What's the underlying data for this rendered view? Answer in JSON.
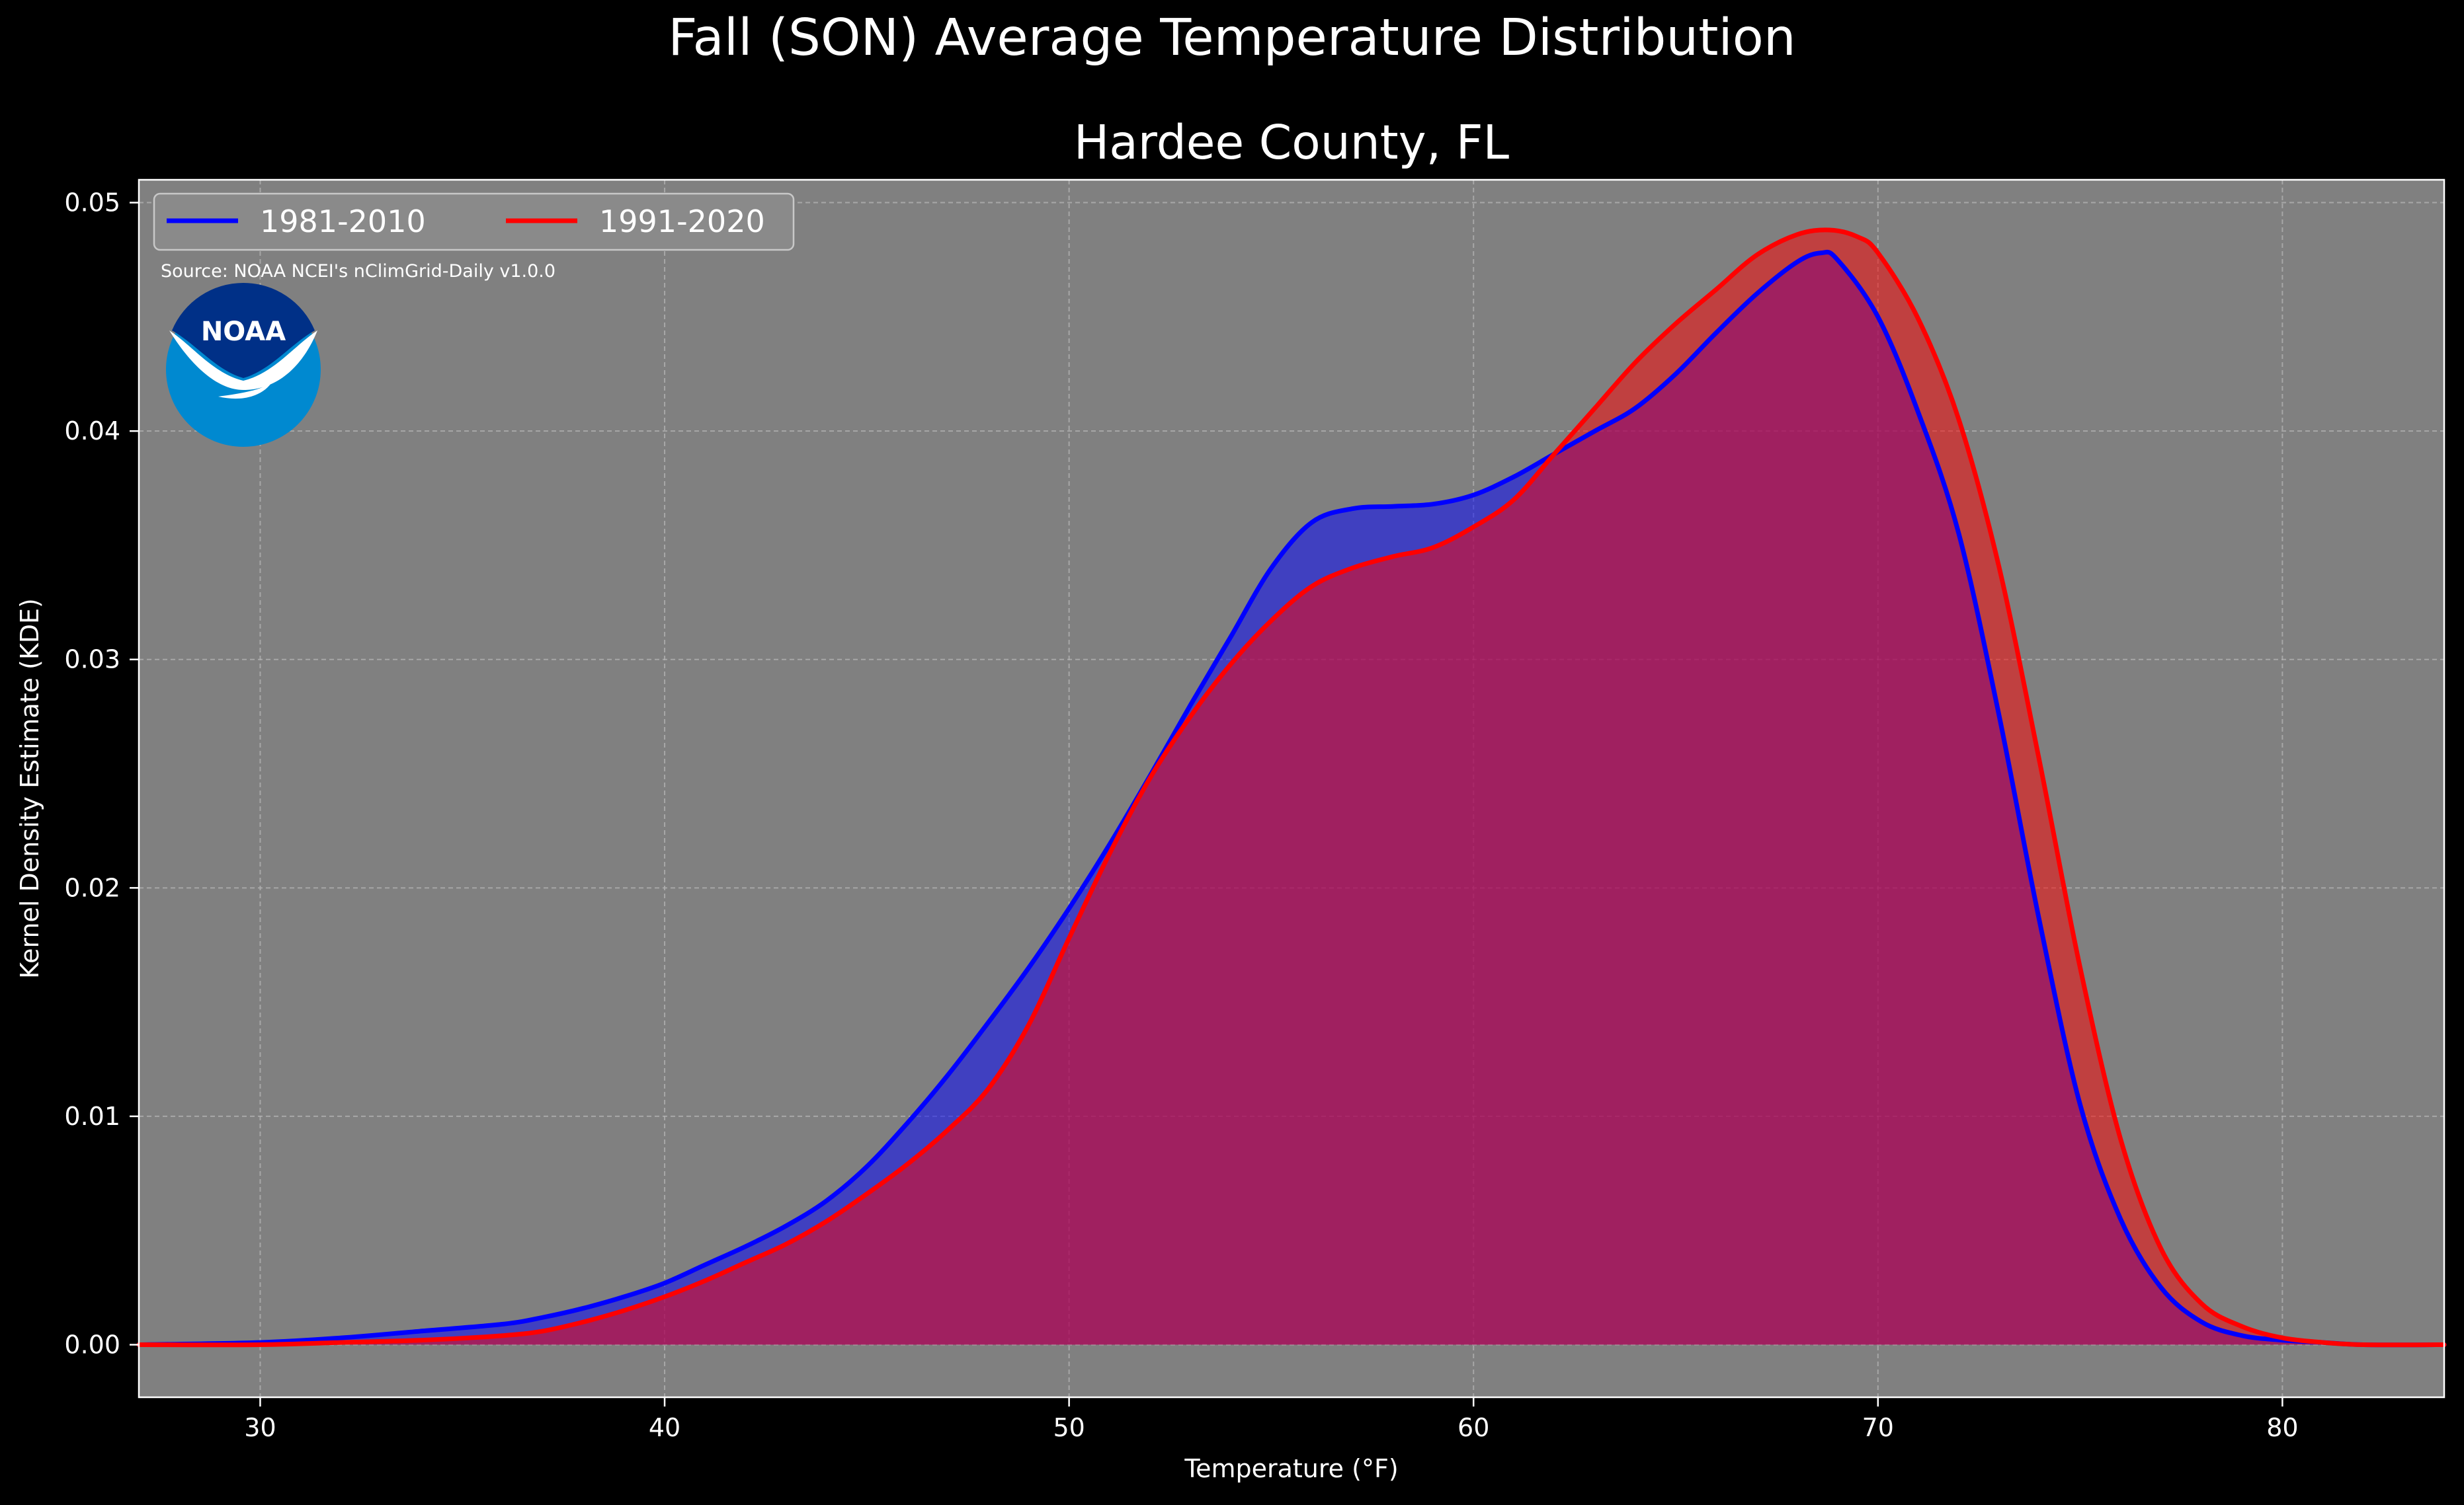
{
  "chart_data": {
    "type": "area",
    "title": "Fall (SON) Average Temperature Distribution",
    "subtitle": "Hardee County, FL",
    "xlabel": "Temperature (°F)",
    "ylabel": "Kernel Density Estimate (KDE)",
    "xlim": [
      27,
      84
    ],
    "ylim": [
      -0.0023,
      0.051
    ],
    "xticks": [
      30,
      40,
      50,
      60,
      70,
      80
    ],
    "yticks": [
      0.0,
      0.01,
      0.02,
      0.03,
      0.04,
      0.05
    ],
    "xtick_labels": [
      "30",
      "40",
      "50",
      "60",
      "70",
      "80"
    ],
    "ytick_labels": [
      "0.00",
      "0.01",
      "0.02",
      "0.03",
      "0.04",
      "0.05"
    ],
    "grid": true,
    "legend_position": "top-left",
    "source_note": "Source: NOAA NCEI's nClimGrid-Daily v1.0.0",
    "logo_text": "NOAA",
    "colors": {
      "background": "#000000",
      "plot_background": "#808080",
      "series_1981": "#0000ff",
      "series_1991": "#ff0000"
    },
    "series": [
      {
        "name": "1981-2010",
        "color": "#0000ff",
        "x": [
          27,
          30,
          32,
          34,
          36,
          37,
          38,
          39,
          40,
          41,
          42,
          43,
          44,
          45,
          46,
          47,
          48,
          49,
          50,
          51,
          52,
          53,
          54,
          55,
          56,
          57,
          58,
          59,
          60,
          61,
          62,
          63,
          64,
          65,
          66,
          67,
          68,
          68.6,
          69,
          70,
          71,
          72,
          73,
          74,
          75,
          76,
          77,
          78,
          79,
          80,
          81,
          82,
          84
        ],
        "y": [
          0.0,
          0.0001,
          0.0003,
          0.0006,
          0.0009,
          0.0012,
          0.0016,
          0.0021,
          0.0027,
          0.0035,
          0.0043,
          0.0052,
          0.0063,
          0.0078,
          0.0097,
          0.0118,
          0.0141,
          0.0165,
          0.0191,
          0.0219,
          0.0249,
          0.028,
          0.031,
          0.034,
          0.036,
          0.0366,
          0.0367,
          0.0368,
          0.0372,
          0.038,
          0.039,
          0.04,
          0.041,
          0.0425,
          0.0443,
          0.046,
          0.0474,
          0.0478,
          0.0475,
          0.045,
          0.0408,
          0.0355,
          0.0275,
          0.0185,
          0.0105,
          0.0055,
          0.0025,
          0.001,
          0.0004,
          0.0002,
          0.0001,
          0.0,
          0.0
        ]
      },
      {
        "name": "1991-2020",
        "color": "#ff0000",
        "x": [
          27,
          30,
          32,
          34,
          36,
          37,
          38,
          39,
          40,
          41,
          42,
          43,
          44,
          45,
          46,
          47,
          48,
          49,
          50,
          51,
          52,
          53,
          54,
          55,
          56,
          57,
          58,
          59,
          60,
          61,
          62,
          63,
          64,
          65,
          66,
          67,
          68,
          68.8,
          69.5,
          70,
          71,
          72,
          73,
          74,
          75,
          76,
          77,
          78,
          79,
          80,
          81,
          82,
          84
        ],
        "y": [
          0.0,
          0.0,
          0.0001,
          0.0002,
          0.0004,
          0.0006,
          0.001,
          0.0015,
          0.0021,
          0.0028,
          0.0036,
          0.0044,
          0.0054,
          0.0066,
          0.0079,
          0.0094,
          0.0112,
          0.014,
          0.0178,
          0.0215,
          0.0248,
          0.0275,
          0.0298,
          0.0317,
          0.0332,
          0.034,
          0.0345,
          0.0349,
          0.0358,
          0.037,
          0.039,
          0.041,
          0.043,
          0.0447,
          0.0462,
          0.0477,
          0.0486,
          0.0488,
          0.0485,
          0.0478,
          0.0449,
          0.0405,
          0.034,
          0.0255,
          0.0165,
          0.009,
          0.0042,
          0.0018,
          0.0008,
          0.0003,
          0.0001,
          0.0,
          0.0
        ]
      }
    ]
  }
}
